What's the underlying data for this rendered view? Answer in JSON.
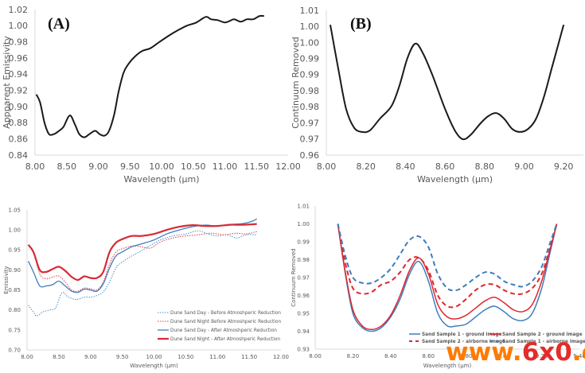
{
  "chart_data": [
    {
      "id": "A",
      "type": "line",
      "panel_label": "(A)",
      "xlabel": "Wavelength (µm)",
      "ylabel": "Appparent Emissivity",
      "xlim": [
        8.0,
        12.0
      ],
      "ylim": [
        0.84,
        1.02
      ],
      "xticks": [
        "8.00",
        "8.50",
        "9.00",
        "9.50",
        "10.00",
        "10.50",
        "11.00",
        "11.50",
        "12.00"
      ],
      "yticks": [
        "0.84",
        "0.86",
        "0.88",
        "0.90",
        "0.92",
        "0.94",
        "0.96",
        "0.98",
        "1.00",
        "1.02"
      ],
      "grid": false,
      "series": [
        {
          "name": "Apparent Emissivity",
          "color": "#1a1a1a",
          "style": "solid",
          "x": [
            8.02,
            8.08,
            8.15,
            8.22,
            8.3,
            8.38,
            8.45,
            8.55,
            8.63,
            8.7,
            8.78,
            8.86,
            8.95,
            9.02,
            9.1,
            9.17,
            9.25,
            9.32,
            9.4,
            9.48,
            9.58,
            9.7,
            9.82,
            9.95,
            10.1,
            10.25,
            10.4,
            10.55,
            10.7,
            10.78,
            10.88,
            11.0,
            11.08,
            11.15,
            11.25,
            11.35,
            11.45,
            11.55,
            11.62
          ],
          "y": [
            0.915,
            0.905,
            0.88,
            0.866,
            0.866,
            0.87,
            0.875,
            0.889,
            0.878,
            0.866,
            0.862,
            0.866,
            0.87,
            0.866,
            0.864,
            0.87,
            0.89,
            0.918,
            0.942,
            0.953,
            0.962,
            0.969,
            0.972,
            0.979,
            0.987,
            0.994,
            1.0,
            1.004,
            1.011,
            1.008,
            1.007,
            1.004,
            1.006,
            1.008,
            1.005,
            1.008,
            1.008,
            1.012,
            1.012
          ]
        }
      ]
    },
    {
      "id": "B",
      "type": "line",
      "panel_label": "(B)",
      "xlabel": "Wavelength (µm)",
      "ylabel": "Continuum Removed",
      "xlim": [
        8.0,
        9.3
      ],
      "ylim": [
        0.96,
        1.01
      ],
      "xticks": [
        "8.00",
        "8.20",
        "8.40",
        "8.60",
        "8.80",
        "9.00",
        "9.20"
      ],
      "yticks": [
        "0.96",
        "0.97",
        "0.97",
        "0.98",
        "0.98",
        "0.99",
        "0.99",
        "1.00",
        "1.00",
        "1.01"
      ],
      "grid": false,
      "series": [
        {
          "name": "Continuum Removed",
          "color": "#1a1a1a",
          "style": "solid",
          "x": [
            8.02,
            8.06,
            8.1,
            8.14,
            8.18,
            8.22,
            8.27,
            8.33,
            8.37,
            8.41,
            8.45,
            8.49,
            8.54,
            8.6,
            8.65,
            8.69,
            8.73,
            8.78,
            8.82,
            8.86,
            8.9,
            8.94,
            8.98,
            9.02,
            9.06,
            9.1,
            9.14,
            9.18,
            9.2
          ],
          "y": [
            1.005,
            0.99,
            0.976,
            0.9695,
            0.968,
            0.9685,
            0.9725,
            0.977,
            0.984,
            0.9935,
            0.9985,
            0.995,
            0.987,
            0.976,
            0.9685,
            0.9655,
            0.967,
            0.971,
            0.9735,
            0.9745,
            0.9725,
            0.969,
            0.968,
            0.969,
            0.9725,
            0.98,
            0.99,
            1.0,
            1.005
          ]
        }
      ]
    },
    {
      "id": "C",
      "type": "line",
      "xlabel": "Wavelength (µm)",
      "ylabel": "Emissivity",
      "xlim": [
        8.0,
        12.0
      ],
      "ylim": [
        0.7,
        1.05
      ],
      "xticks": [
        "8.00",
        "8.50",
        "9.00",
        "9.50",
        "10.00",
        "10.50",
        "11.00",
        "11.50",
        "12.00"
      ],
      "yticks": [
        "0.70",
        "0.75",
        "0.80",
        "0.85",
        "0.90",
        "0.95",
        "1.00",
        "1.05"
      ],
      "grid": false,
      "legend": "bottom-right",
      "series": [
        {
          "name": "Dune Sand Day - Before Atmoshperic Reduction",
          "color": "#4a90c8",
          "style": "dotted",
          "x": [
            8.02,
            8.1,
            8.15,
            8.25,
            8.35,
            8.45,
            8.55,
            8.65,
            8.78,
            8.9,
            9.0,
            9.1,
            9.2,
            9.3,
            9.4,
            9.5,
            9.65,
            9.8,
            9.95,
            10.1,
            10.3,
            10.5,
            10.7,
            10.85,
            11.0,
            11.15,
            11.3,
            11.45,
            11.62
          ],
          "y": [
            0.812,
            0.795,
            0.785,
            0.795,
            0.8,
            0.805,
            0.843,
            0.832,
            0.826,
            0.832,
            0.832,
            0.836,
            0.845,
            0.87,
            0.905,
            0.92,
            0.935,
            0.948,
            0.962,
            0.975,
            0.985,
            0.99,
            0.998,
            0.99,
            0.985,
            0.988,
            0.98,
            0.988,
            0.988
          ]
        },
        {
          "name": "Dune Sand Night Before Atmoshperic Reduction",
          "color": "#d9393e",
          "style": "dotted",
          "x": [
            8.02,
            8.1,
            8.2,
            8.3,
            8.4,
            8.5,
            8.6,
            8.7,
            8.8,
            8.9,
            9.0,
            9.1,
            9.2,
            9.3,
            9.4,
            9.5,
            9.65,
            9.8,
            9.95,
            10.1,
            10.3,
            10.5,
            10.7,
            10.9,
            11.1,
            11.3,
            11.45,
            11.62
          ],
          "y": [
            0.962,
            0.945,
            0.89,
            0.878,
            0.882,
            0.885,
            0.87,
            0.85,
            0.847,
            0.855,
            0.853,
            0.85,
            0.87,
            0.915,
            0.945,
            0.953,
            0.96,
            0.958,
            0.955,
            0.97,
            0.98,
            0.985,
            0.988,
            0.992,
            0.988,
            0.992,
            0.99,
            0.996
          ]
        },
        {
          "name": "Dune Sand Day - After Atmoshperic Reduction",
          "color": "#3e7dbd",
          "style": "solid",
          "x": [
            8.02,
            8.1,
            8.2,
            8.3,
            8.4,
            8.5,
            8.6,
            8.7,
            8.8,
            8.9,
            9.0,
            9.1,
            9.2,
            9.3,
            9.4,
            9.5,
            9.65,
            9.8,
            10.0,
            10.2,
            10.4,
            10.6,
            10.8,
            11.0,
            11.2,
            11.4,
            11.55,
            11.62
          ],
          "y": [
            0.922,
            0.895,
            0.86,
            0.86,
            0.863,
            0.872,
            0.86,
            0.847,
            0.844,
            0.852,
            0.85,
            0.847,
            0.865,
            0.905,
            0.935,
            0.945,
            0.958,
            0.965,
            0.975,
            0.99,
            1.0,
            1.008,
            1.012,
            1.01,
            1.014,
            1.016,
            1.022,
            1.028
          ]
        },
        {
          "name": "Dune Sand Night - After Atmoshperic Reduction",
          "color": "#d82a35",
          "style": "solid-thick",
          "x": [
            8.02,
            8.1,
            8.2,
            8.3,
            8.4,
            8.5,
            8.6,
            8.7,
            8.8,
            8.9,
            9.0,
            9.1,
            9.2,
            9.3,
            9.4,
            9.5,
            9.65,
            9.8,
            10.0,
            10.2,
            10.4,
            10.6,
            10.8,
            11.0,
            11.2,
            11.4,
            11.62
          ],
          "y": [
            0.963,
            0.945,
            0.9,
            0.895,
            0.902,
            0.908,
            0.898,
            0.883,
            0.875,
            0.884,
            0.88,
            0.88,
            0.895,
            0.945,
            0.968,
            0.977,
            0.985,
            0.985,
            0.99,
            1.0,
            1.008,
            1.012,
            1.01,
            1.01,
            1.013,
            1.013,
            1.015
          ]
        }
      ]
    },
    {
      "id": "D",
      "type": "line",
      "xlabel": "Wavelength (µm)",
      "ylabel": "Continuum Removed",
      "xlim": [
        8.0,
        9.4
      ],
      "ylim": [
        0.93,
        1.01
      ],
      "xticks": [
        "8.00",
        "8.20",
        "8.40",
        "8.60",
        "8.80",
        "9.00",
        "9.20",
        "9.40"
      ],
      "yticks": [
        "0.93",
        "0.94",
        "0.95",
        "0.96",
        "0.97",
        "0.98",
        "0.99",
        "1.00",
        "1.01"
      ],
      "grid": false,
      "legend": "bottom",
      "series": [
        {
          "name": "Sand Sample 1 - ground image",
          "color": "#3e7dbd",
          "style": "solid",
          "x": [
            8.12,
            8.16,
            8.2,
            8.25,
            8.3,
            8.35,
            8.4,
            8.45,
            8.5,
            8.55,
            8.6,
            8.65,
            8.7,
            8.75,
            8.8,
            8.85,
            8.9,
            8.95,
            9.0,
            9.05,
            9.1,
            9.15,
            9.2,
            9.24,
            9.28
          ],
          "y": [
            1.0,
            0.972,
            0.95,
            0.942,
            0.94,
            0.942,
            0.948,
            0.958,
            0.972,
            0.979,
            0.968,
            0.95,
            0.943,
            0.943,
            0.944,
            0.948,
            0.952,
            0.954,
            0.951,
            0.947,
            0.946,
            0.95,
            0.964,
            0.982,
            1.0
          ]
        },
        {
          "name": "Sand Sample 2 - ground image",
          "color": "#e0262e",
          "style": "solid",
          "x": [
            8.12,
            8.16,
            8.2,
            8.25,
            8.3,
            8.35,
            8.4,
            8.45,
            8.5,
            8.55,
            8.6,
            8.65,
            8.7,
            8.75,
            8.8,
            8.85,
            8.9,
            8.95,
            9.0,
            9.05,
            9.1,
            9.15,
            9.2,
            9.24,
            9.28
          ],
          "y": [
            1.0,
            0.973,
            0.952,
            0.943,
            0.941,
            0.943,
            0.949,
            0.96,
            0.974,
            0.981,
            0.972,
            0.955,
            0.948,
            0.947,
            0.949,
            0.953,
            0.957,
            0.959,
            0.956,
            0.952,
            0.951,
            0.955,
            0.968,
            0.984,
            1.0
          ]
        },
        {
          "name": "Sand Sample 2 - airborne image",
          "color": "#e0262e",
          "style": "dashed",
          "x": [
            8.12,
            8.16,
            8.2,
            8.25,
            8.3,
            8.35,
            8.4,
            8.45,
            8.5,
            8.55,
            8.6,
            8.65,
            8.7,
            8.75,
            8.8,
            8.85,
            8.9,
            8.95,
            9.0,
            9.05,
            9.1,
            9.15,
            9.2,
            9.24,
            9.28
          ],
          "y": [
            1.0,
            0.978,
            0.964,
            0.961,
            0.962,
            0.966,
            0.968,
            0.973,
            0.98,
            0.981,
            0.974,
            0.96,
            0.954,
            0.954,
            0.958,
            0.963,
            0.966,
            0.966,
            0.963,
            0.961,
            0.961,
            0.964,
            0.972,
            0.985,
            1.0
          ]
        },
        {
          "name": "Sand Sample 1 - airborne image",
          "color": "#3e7dbd",
          "style": "dashed",
          "x": [
            8.12,
            8.16,
            8.2,
            8.25,
            8.3,
            8.35,
            8.4,
            8.45,
            8.5,
            8.55,
            8.6,
            8.65,
            8.7,
            8.75,
            8.8,
            8.85,
            8.9,
            8.95,
            9.0,
            9.05,
            9.1,
            9.15,
            9.2,
            9.24,
            9.28
          ],
          "y": [
            1.0,
            0.982,
            0.97,
            0.967,
            0.967,
            0.97,
            0.975,
            0.983,
            0.991,
            0.993,
            0.987,
            0.972,
            0.964,
            0.963,
            0.966,
            0.97,
            0.973,
            0.972,
            0.968,
            0.966,
            0.965,
            0.968,
            0.976,
            0.988,
            1.0
          ]
        }
      ]
    }
  ],
  "watermark": {
    "prefix": "www.",
    "middle": "6x0",
    "suffix": ".cn"
  }
}
